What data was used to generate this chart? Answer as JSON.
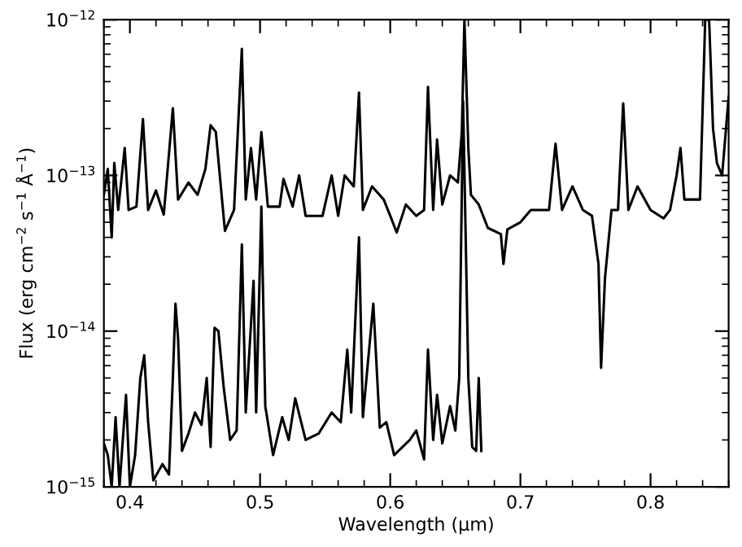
{
  "chart_data": {
    "type": "line",
    "xlabel": "Wavelength (μm)",
    "ylabel": "Flux (erg cm$^{−2}$ s$^{−1}$ Å$^{−1}$)",
    "log": "y",
    "xlim": [
      0.38,
      0.86
    ],
    "xticks": [
      0.4,
      0.5,
      0.6,
      0.7,
      0.8
    ],
    "ylim": [
      1e-15,
      1e-12
    ],
    "yticks": [
      {
        "value": 1e-15,
        "label": "10$^{−15}$"
      },
      {
        "value": 1e-14,
        "label": "10$^{−14}$"
      },
      {
        "value": 1e-13,
        "label": "10$^{−13}$"
      },
      {
        "value": 1e-12,
        "label": "10$^{−12}$"
      }
    ],
    "grid": false,
    "legend": false,
    "marker": "none",
    "line_style": "solid",
    "series": [
      {
        "color": "#000000",
        "x": [
          0.38,
          0.383,
          0.386,
          0.388,
          0.391,
          0.396,
          0.399,
          0.405,
          0.41,
          0.414,
          0.42,
          0.426,
          0.433,
          0.437,
          0.445,
          0.452,
          0.458,
          0.462,
          0.466,
          0.473,
          0.48,
          0.486,
          0.489,
          0.493,
          0.497,
          0.501,
          0.506,
          0.515,
          0.518,
          0.525,
          0.53,
          0.535,
          0.548,
          0.555,
          0.56,
          0.565,
          0.572,
          0.576,
          0.579,
          0.586,
          0.595,
          0.6,
          0.605,
          0.612,
          0.62,
          0.626,
          0.629,
          0.633,
          0.636,
          0.64,
          0.646,
          0.652,
          0.655,
          0.657,
          0.66,
          0.662,
          0.668,
          0.675,
          0.685,
          0.687,
          0.69,
          0.7,
          0.708,
          0.715,
          0.722,
          0.727,
          0.732,
          0.74,
          0.748,
          0.755,
          0.76,
          0.762,
          0.765,
          0.77,
          0.775,
          0.779,
          0.783,
          0.79,
          0.8,
          0.81,
          0.815,
          0.82,
          0.823,
          0.826,
          0.832,
          0.838,
          0.842,
          0.845,
          0.848,
          0.851,
          0.855,
          0.86
        ],
        "values": [
          7.5e-14,
          1.1e-13,
          4e-14,
          1.2e-13,
          6e-14,
          1.5e-13,
          6e-14,
          6.3e-14,
          2.3e-13,
          6e-14,
          8e-14,
          5.6e-14,
          2.7e-13,
          7e-14,
          9e-14,
          7.5e-14,
          1.1e-13,
          2.1e-13,
          1.9e-13,
          4.4e-14,
          6e-14,
          6.5e-13,
          7e-14,
          1.5e-13,
          7e-14,
          1.9e-13,
          6.3e-14,
          6.3e-14,
          9.5e-14,
          6.3e-14,
          1e-13,
          5.5e-14,
          5.5e-14,
          1e-13,
          5.5e-14,
          1e-13,
          8.5e-14,
          3.4e-13,
          6e-14,
          8.5e-14,
          7e-14,
          5.5e-14,
          4.3e-14,
          6.5e-14,
          5.5e-14,
          6e-14,
          3.7e-13,
          6e-14,
          1.7e-13,
          6.5e-14,
          1e-13,
          9e-14,
          1.9e-13,
          1e-12,
          1.5e-13,
          7.5e-14,
          6.5e-14,
          4.6e-14,
          4.2e-14,
          2.7e-14,
          4.5e-14,
          5e-14,
          6e-14,
          6e-14,
          6e-14,
          1.6e-13,
          6e-14,
          8.5e-14,
          6e-14,
          5.5e-14,
          2.7e-14,
          5.8e-15,
          2.2e-14,
          6e-14,
          6e-14,
          2.9e-13,
          6e-14,
          8.5e-14,
          6e-14,
          5.3e-14,
          6e-14,
          1e-13,
          1.5e-13,
          7e-14,
          7e-14,
          7e-14,
          1e-12,
          1e-12,
          2e-13,
          1.2e-13,
          1e-13,
          3.2e-13
        ]
      },
      {
        "color": "#000000",
        "x": [
          0.38,
          0.383,
          0.386,
          0.389,
          0.392,
          0.397,
          0.4,
          0.404,
          0.408,
          0.411,
          0.414,
          0.418,
          0.425,
          0.43,
          0.433,
          0.435,
          0.437,
          0.44,
          0.445,
          0.45,
          0.455,
          0.459,
          0.462,
          0.465,
          0.468,
          0.472,
          0.477,
          0.482,
          0.486,
          0.489,
          0.495,
          0.497,
          0.501,
          0.504,
          0.51,
          0.517,
          0.522,
          0.527,
          0.535,
          0.545,
          0.555,
          0.562,
          0.567,
          0.57,
          0.576,
          0.579,
          0.587,
          0.592,
          0.597,
          0.603,
          0.615,
          0.62,
          0.626,
          0.629,
          0.633,
          0.636,
          0.64,
          0.646,
          0.65,
          0.653,
          0.656,
          0.66,
          0.663,
          0.666,
          0.668,
          0.67
        ],
        "values": [
          1.9e-15,
          1.6e-15,
          1e-15,
          2.8e-15,
          1e-15,
          3.9e-15,
          1e-15,
          1.6e-15,
          5e-15,
          7e-15,
          2.6e-15,
          1.1e-15,
          1.4e-15,
          1.2e-15,
          5e-15,
          1.5e-14,
          9e-15,
          1.7e-15,
          2.2e-15,
          3e-15,
          2.5e-15,
          5e-15,
          1.8e-15,
          1.05e-14,
          1e-14,
          4.4e-15,
          2e-15,
          2.3e-15,
          3.6e-14,
          3e-15,
          2.1e-14,
          3e-15,
          6.3e-14,
          3.3e-15,
          1.6e-15,
          2.8e-15,
          2e-15,
          3.7e-15,
          2e-15,
          2.2e-15,
          3e-15,
          2.6e-15,
          7.6e-15,
          3e-15,
          4e-14,
          2.8e-15,
          1.5e-14,
          2.4e-15,
          2.6e-15,
          1.6e-15,
          2e-15,
          2.3e-15,
          1.5e-15,
          7.6e-15,
          2e-15,
          3.9e-15,
          1.9e-15,
          3.3e-15,
          2.3e-15,
          5e-15,
          3e-13,
          5e-15,
          1.8e-15,
          1.7e-15,
          5e-15,
          1.7e-15
        ]
      }
    ]
  }
}
